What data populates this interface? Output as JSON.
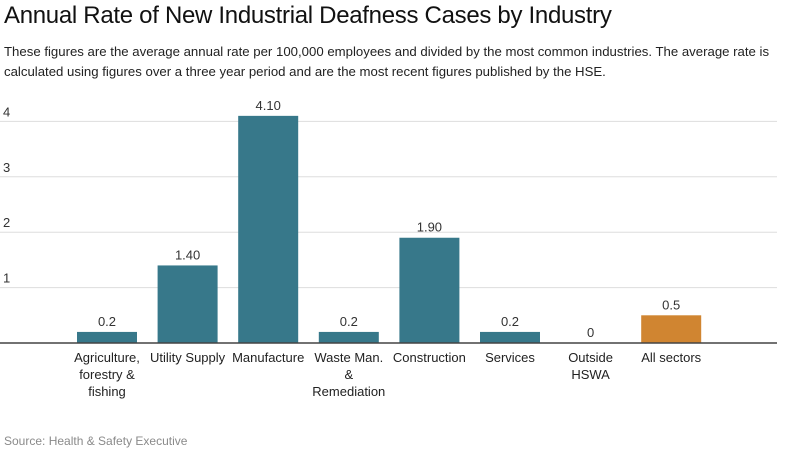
{
  "header": {
    "title": "Annual Rate of New Industrial Deafness Cases by Industry",
    "subtitle": "These figures are the average annual rate per 100,000 employees and divided by the most common industries. The average rate is calculated using figures over a three year period and are the most recent figures published by the HSE."
  },
  "footer": {
    "source": "Source: Health & Safety Executive"
  },
  "colors": {
    "bar": "#37788a",
    "highlight": "#d08531",
    "grid": "#dddddd",
    "axis": "#444444"
  },
  "chart_data": {
    "type": "bar",
    "title": "Annual Rate of New Industrial Deafness Cases by Industry",
    "xlabel": "",
    "ylabel": "",
    "ylim": [
      0,
      4.1
    ],
    "yticks": [
      1,
      2,
      3,
      4
    ],
    "grid": true,
    "legend": "none",
    "categories": [
      [
        "Agriculture,",
        "forestry &",
        "fishing"
      ],
      [
        "Utility Supply"
      ],
      [
        "Manufacture"
      ],
      [
        "Waste Man.",
        "&",
        "Remediation"
      ],
      [
        "Construction"
      ],
      [
        "Services"
      ],
      [
        "Outside",
        "HSWA"
      ],
      [
        "All sectors"
      ]
    ],
    "values": [
      0.2,
      1.4,
      4.1,
      0.2,
      1.9,
      0.2,
      0,
      0.5
    ],
    "value_labels": [
      "0.2",
      "1.40",
      "4.10",
      "0.2",
      "1.90",
      "0.2",
      "0",
      "0.5"
    ],
    "highlighted": [
      false,
      false,
      false,
      false,
      false,
      false,
      false,
      true
    ]
  }
}
